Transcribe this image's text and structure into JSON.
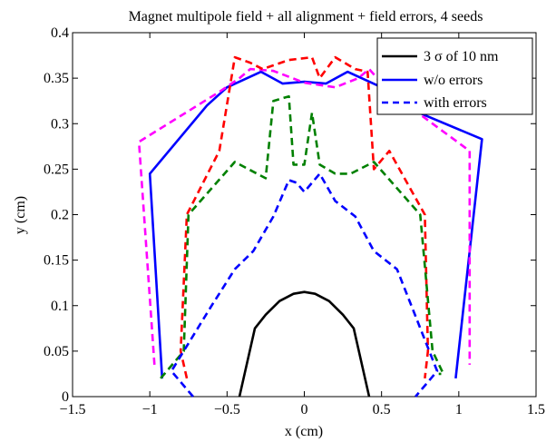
{
  "chart_data": {
    "type": "line",
    "title": "Magnet multipole field + all alignment + field errors, 4 seeds",
    "xlabel": "x (cm)",
    "ylabel": "y (cm)",
    "xlim": [
      -1.5,
      1.5
    ],
    "ylim": [
      0,
      0.4
    ],
    "x_ticks": [
      "−1.5",
      "−1",
      "−0.5",
      "0",
      "0.5",
      "1",
      "1.5"
    ],
    "y_ticks": [
      "0",
      "0.05",
      "0.1",
      "0.15",
      "0.2",
      "0.25",
      "0.3",
      "0.35",
      "0.4"
    ],
    "grid": false,
    "legend_position": "top-right",
    "legend": [
      "3 σ of 10 nm",
      "w/o errors",
      "with errors"
    ],
    "series": [
      {
        "name": "3 σ of 10 nm",
        "color": "#000000",
        "style": "solid",
        "x": [
          -0.42,
          -0.32,
          -0.25,
          -0.16,
          -0.07,
          0.0,
          0.07,
          0.16,
          0.25,
          0.32,
          0.42
        ],
        "y": [
          0.0,
          0.075,
          0.09,
          0.105,
          0.113,
          0.115,
          0.113,
          0.105,
          0.09,
          0.075,
          0.0
        ]
      },
      {
        "name": "w/o errors",
        "color": "#0000ff",
        "style": "solid",
        "x": [
          -0.92,
          -1.0,
          -0.63,
          -0.5,
          -0.28,
          -0.14,
          0.0,
          0.14,
          0.28,
          0.5,
          0.63,
          1.15,
          0.98
        ],
        "y": [
          0.02,
          0.245,
          0.32,
          0.34,
          0.357,
          0.344,
          0.346,
          0.344,
          0.357,
          0.34,
          0.32,
          0.283,
          0.02
        ]
      },
      {
        "color": "#ff00ff",
        "style": "dashed",
        "x": [
          -0.97,
          -1.07,
          -0.55,
          -0.42,
          -0.35,
          -0.2,
          0.0,
          0.2,
          0.35,
          0.42,
          0.55,
          1.07,
          1.07
        ],
        "y": [
          0.035,
          0.28,
          0.335,
          0.35,
          0.36,
          0.358,
          0.345,
          0.34,
          0.35,
          0.36,
          0.335,
          0.27,
          0.035
        ]
      },
      {
        "color": "#ff0000",
        "style": "dashed",
        "x": [
          -0.76,
          -0.8,
          -0.76,
          -0.55,
          -0.45,
          -0.35,
          -0.27,
          -0.1,
          0.05,
          0.1,
          0.2,
          0.33,
          0.41,
          0.45,
          0.55,
          0.78,
          0.8,
          0.78
        ],
        "y": [
          0.02,
          0.05,
          0.2,
          0.27,
          0.373,
          0.367,
          0.36,
          0.37,
          0.373,
          0.35,
          0.373,
          0.36,
          0.357,
          0.25,
          0.27,
          0.2,
          0.05,
          0.02
        ],
        "data_note": "red dashed seed"
      },
      {
        "color": "#008000",
        "style": "dashed",
        "x": [
          -0.93,
          -0.78,
          -0.75,
          -0.45,
          -0.25,
          -0.2,
          -0.1,
          -0.07,
          0.0,
          0.05,
          0.1,
          0.2,
          0.3,
          0.45,
          0.75,
          0.83,
          0.9,
          0.87
        ],
        "y": [
          0.02,
          0.05,
          0.2,
          0.258,
          0.24,
          0.325,
          0.33,
          0.255,
          0.255,
          0.312,
          0.255,
          0.245,
          0.245,
          0.258,
          0.2,
          0.05,
          0.025,
          0.025
        ]
      },
      {
        "color": "#0000ff",
        "style": "dashed",
        "x": [
          -0.72,
          -0.86,
          -0.6,
          -0.45,
          -0.33,
          -0.2,
          -0.1,
          -0.05,
          0.0,
          0.1,
          0.2,
          0.33,
          0.45,
          0.6,
          0.86,
          0.72
        ],
        "y": [
          0.0,
          0.028,
          0.1,
          0.14,
          0.16,
          0.198,
          0.238,
          0.235,
          0.225,
          0.245,
          0.215,
          0.198,
          0.16,
          0.14,
          0.028,
          0.0
        ]
      }
    ]
  }
}
